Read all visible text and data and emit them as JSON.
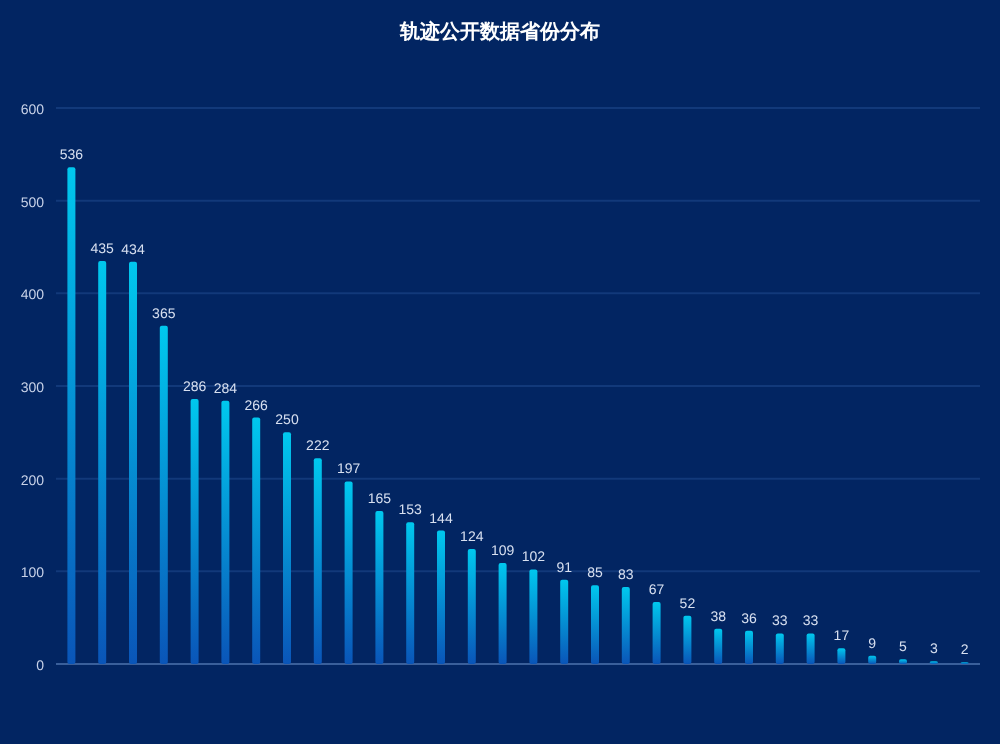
{
  "chart_data": {
    "type": "bar",
    "title": "轨迹公开数据省份分布",
    "categories": [
      null,
      null,
      null,
      null,
      null,
      null,
      null,
      null,
      null,
      null,
      null,
      null,
      null,
      null,
      null,
      null,
      null,
      null,
      null,
      null,
      null,
      null,
      null,
      null,
      null,
      null,
      null,
      null,
      null,
      null
    ],
    "values": [
      536,
      435,
      434,
      365,
      286,
      284,
      266,
      250,
      222,
      197,
      165,
      153,
      144,
      124,
      109,
      102,
      91,
      85,
      83,
      67,
      52,
      38,
      36,
      33,
      33,
      17,
      9,
      5,
      3,
      2
    ],
    "color": "#00c8ee",
    "ylim": [
      0,
      600
    ],
    "yticks": [
      0,
      100,
      200,
      300,
      400,
      500,
      600
    ],
    "grid": "y",
    "data_labels": true
  }
}
